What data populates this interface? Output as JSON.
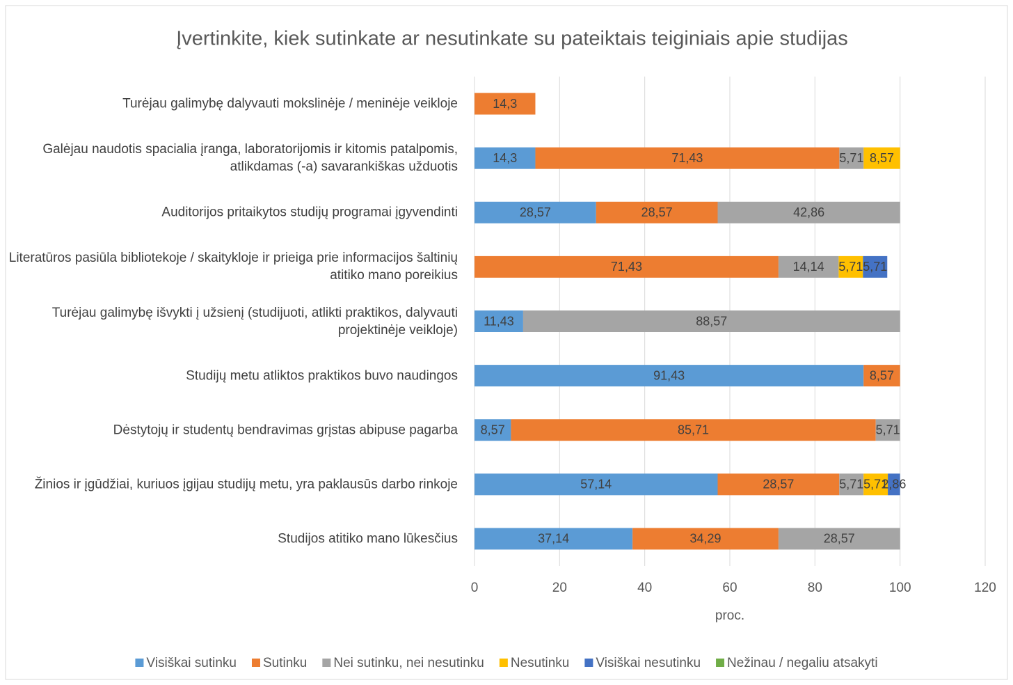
{
  "chart_data": {
    "type": "stacked-bar-horizontal",
    "title": "Įvertinkite, kiek sutinkate ar nesutinkate su pateiktais teiginiais apie studijas",
    "xlabel": "proc.",
    "categories": [
      "Turėjau galimybę dalyvauti mokslinėje / meninėje veikloje",
      "Galėjau naudotis spacialia įranga, laboratorijomis ir kitomis patalpomis, atlikdamas (-a) savarankiškas užduotis",
      "Auditorijos pritaikytos studijų programai įgyvendinti",
      "Literatūros pasiūla bibliotekoje / skaitykloje ir prieiga prie informacijos šaltinių atitiko mano poreikius",
      "Turėjau galimybę išvykti į užsienį (studijuoti, atlikti praktikos, dalyvauti projektinėje veikloje)",
      "Studijų metu atliktos praktikos buvo naudingos",
      "Dėstytojų ir studentų bendravimas grįstas abipuse pagarba",
      "Žinios ir įgūdžiai, kuriuos įgijau studijų metu, yra paklausūs darbo rinkoje",
      "Studijos atitiko mano lūkesčius"
    ],
    "series": [
      {
        "name": "Visiškai sutinku",
        "color": "#5b9bd5",
        "values": [
          null,
          14.3,
          28.57,
          null,
          11.43,
          91.43,
          8.57,
          57.14,
          37.14
        ],
        "value_labels": [
          null,
          "14,3",
          "28,57",
          null,
          "11,43",
          "91,43",
          "8,57",
          "57,14",
          "37,14"
        ]
      },
      {
        "name": "Sutinku",
        "color": "#ed7d31",
        "values": [
          14.3,
          71.43,
          28.57,
          71.43,
          null,
          8.57,
          85.71,
          28.57,
          34.29
        ],
        "value_labels": [
          "14,3",
          "71,43",
          "28,57",
          "71,43",
          null,
          "8,57",
          "85,71",
          "28,57",
          "34,29"
        ]
      },
      {
        "name": "Nei sutinku, nei nesutinku",
        "color": "#a5a5a5",
        "values": [
          null,
          5.71,
          42.86,
          14.14,
          88.57,
          null,
          5.71,
          5.71,
          28.57
        ],
        "value_labels": [
          null,
          "5,71",
          "42,86",
          "14,14",
          "88,57",
          null,
          "5,71",
          "5,71",
          "28,57"
        ]
      },
      {
        "name": "Nesutinku",
        "color": "#ffc000",
        "values": [
          null,
          8.57,
          null,
          5.71,
          null,
          null,
          null,
          5.71,
          null
        ],
        "value_labels": [
          null,
          "8,57",
          null,
          "5,71",
          null,
          null,
          null,
          "5,71",
          null
        ]
      },
      {
        "name": "Visiškai nesutinku",
        "color": "#4472c4",
        "values": [
          null,
          null,
          null,
          5.71,
          null,
          null,
          null,
          2.86,
          null
        ],
        "value_labels": [
          null,
          null,
          null,
          "5,71",
          null,
          null,
          null,
          "2,86",
          null
        ]
      },
      {
        "name": "Nežinau / negaliu atsakyti",
        "color": "#70ad47",
        "values": [
          null,
          null,
          null,
          null,
          null,
          null,
          null,
          null,
          null
        ]
      }
    ],
    "xlim": [
      0,
      120
    ],
    "xticks": [
      0,
      20,
      40,
      60,
      80,
      100,
      120
    ],
    "grid": true
  }
}
